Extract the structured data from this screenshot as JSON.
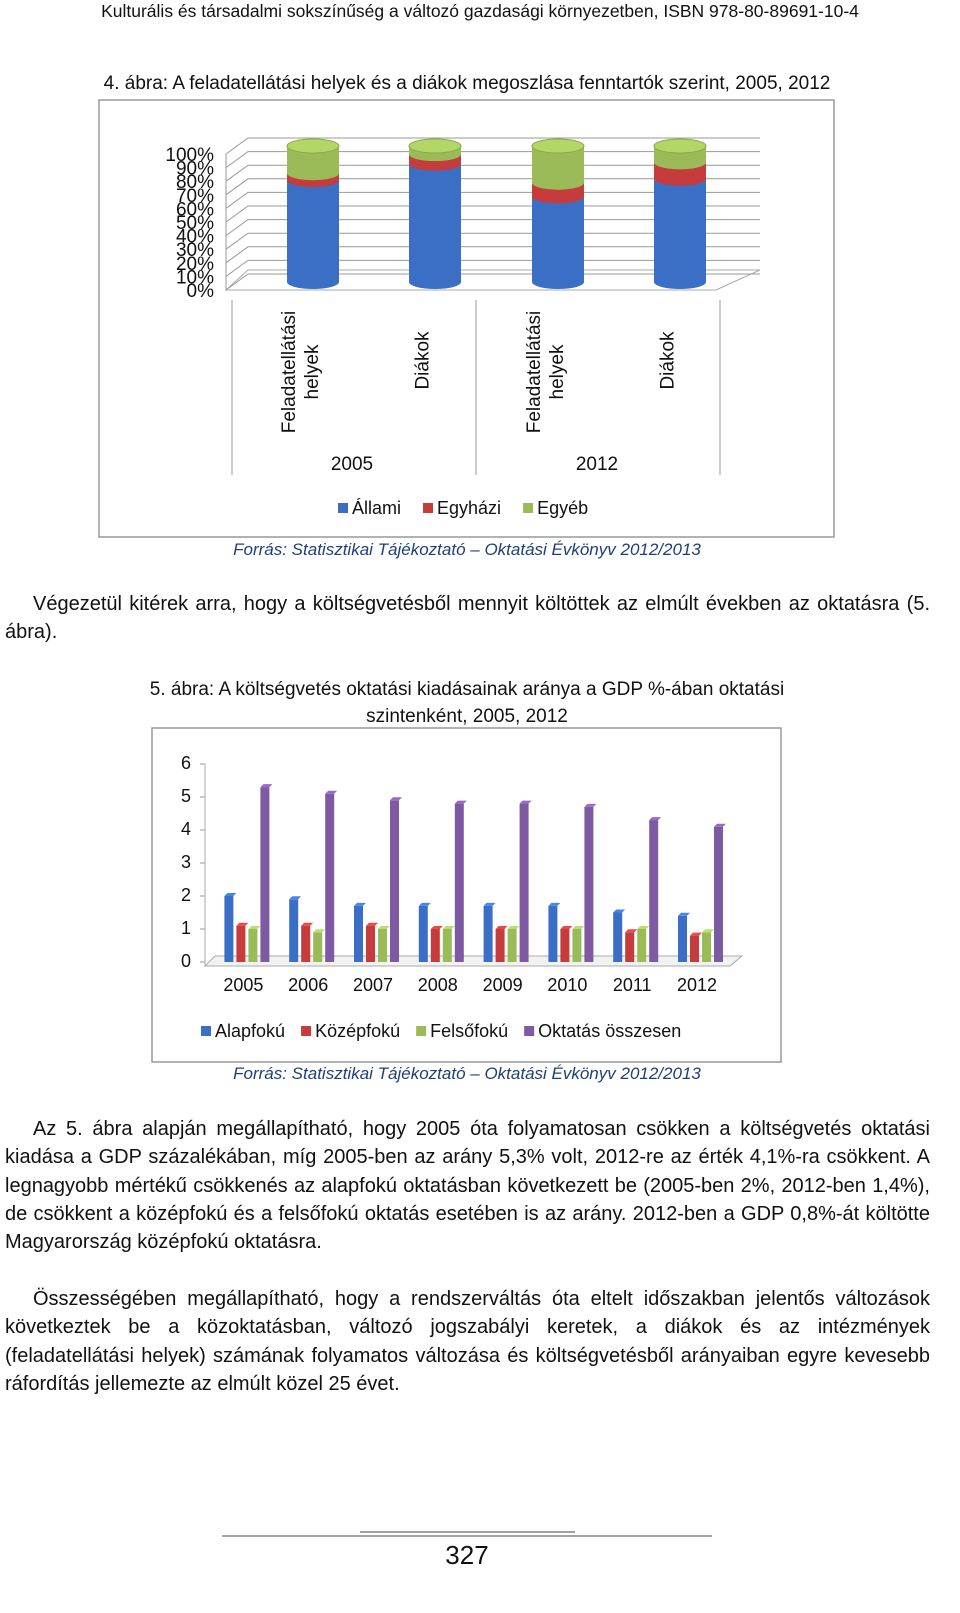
{
  "header": "Kulturális és társadalmi sokszínűség a változó gazdasági környezetben, ISBN 978-80-89691-10-4",
  "chart_data": [
    {
      "type": "stacked-cylinder",
      "title": "4. ábra: A feladatellátási helyek és a diákok megoszlása fenntartók szerint, 2005, 2012",
      "categories": [
        "Feladatellátási helyek",
        "Diákok",
        "Feladatellátási helyek",
        "Diákok"
      ],
      "groups": [
        "2005",
        "2012"
      ],
      "series": [
        {
          "name": "Állami",
          "color": "#3b6fc6",
          "values": [
            75,
            87,
            63,
            76
          ]
        },
        {
          "name": "Egyházi",
          "color": "#c63c3c",
          "values": [
            5,
            7,
            10,
            12
          ]
        },
        {
          "name": "Egyéb",
          "color": "#9bbb59",
          "values": [
            20,
            6,
            27,
            12
          ]
        }
      ],
      "ylim": [
        0,
        100
      ],
      "yticks": [
        {
          "value": 0,
          "label": "0%"
        },
        {
          "value": 10,
          "label": "10%"
        },
        {
          "value": 20,
          "label": "20%"
        },
        {
          "value": 30,
          "label": "30%"
        },
        {
          "value": 40,
          "label": "40%"
        },
        {
          "value": 50,
          "label": "50%"
        },
        {
          "value": 60,
          "label": "60%"
        },
        {
          "value": 70,
          "label": "70%"
        },
        {
          "value": 80,
          "label": "80%"
        },
        {
          "value": 90,
          "label": "90%"
        },
        {
          "value": 100,
          "label": "100%"
        }
      ],
      "grid": true,
      "legend": "bottom",
      "source": "Forrás: Statisztikai Tájékoztató – Oktatási Évkönyv 2012/2013"
    },
    {
      "type": "bar",
      "title": "5. ábra: A költségvetés oktatási kiadásainak aránya a GDP %-ában oktatási szintenként, 2005, 2012",
      "categories": [
        "2005",
        "2006",
        "2007",
        "2008",
        "2009",
        "2010",
        "2011",
        "2012"
      ],
      "series": [
        {
          "name": "Alapfokú",
          "color": "#3b6fc6",
          "values": [
            2.0,
            1.9,
            1.7,
            1.7,
            1.7,
            1.7,
            1.5,
            1.4
          ]
        },
        {
          "name": "Középfokú",
          "color": "#c63c3c",
          "values": [
            1.1,
            1.1,
            1.1,
            1.0,
            1.0,
            1.0,
            0.9,
            0.8
          ]
        },
        {
          "name": "Felsőfokú",
          "color": "#9bbb59",
          "values": [
            1.0,
            0.9,
            1.0,
            1.0,
            1.0,
            1.0,
            1.0,
            0.9
          ]
        },
        {
          "name": "Oktatás összesen",
          "color": "#7e5aa3",
          "values": [
            5.3,
            5.1,
            4.9,
            4.8,
            4.8,
            4.7,
            4.3,
            4.1
          ]
        }
      ],
      "ylim": [
        0,
        6
      ],
      "yticks": [
        0,
        1,
        2,
        3,
        4,
        5,
        6
      ],
      "grid": false,
      "legend": "bottom",
      "source": "Forrás: Statisztikai Tájékoztató – Oktatási Évkönyv 2012/2013"
    }
  ],
  "document": {
    "paragraphs": [
      "Végezetül kitérek arra, hogy a költségvetésből mennyit költöttek az elmúlt években az oktatásra (5. ábra).",
      "Az 5. ábra alapján megállapítható, hogy 2005 óta folyamatosan csökken a költségvetés oktatási kiadása a GDP százalékában, míg 2005-ben az arány 5,3% volt, 2012-re az érték 4,1%-ra csökkent. A legnagyobb mértékű csökkenés az alapfokú oktatásban következett be (2005-ben 2%, 2012-ben 1,4%), de csökkent a középfokú és a felsőfokú oktatás esetében is az arány. 2012-ben a GDP 0,8%-át költötte Magyarország középfokú oktatásra.",
      "Összességében megállapítható, hogy a rendszerváltás óta eltelt időszakban jelentős változások következtek be a közoktatásban, változó jogszabályi keretek, a diákok és az intézmények (feladatellátási helyek) számának folyamatos változása és költségvetésből arányaiban egyre kevesebb ráfordítás jellemezte az elmúlt közel 25 évet."
    ],
    "page_number": "327"
  }
}
